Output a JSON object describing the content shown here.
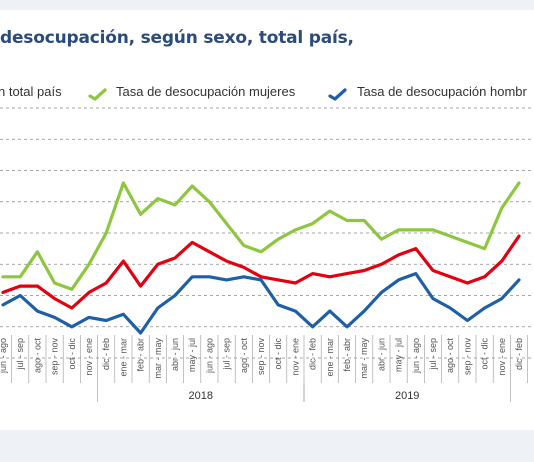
{
  "title": "desocupación, según sexo, total país,",
  "legend": [
    {
      "label": "n total país",
      "color": "#e3000f"
    },
    {
      "label": "Tasa de desocupación mujeres",
      "color": "#8dc63f"
    },
    {
      "label": "Tasa de desocupación hombr",
      "color": "#1f5fa6"
    }
  ],
  "chart_data": {
    "type": "line",
    "categories": [
      "jun - ago",
      "jul - sep",
      "ago - oct",
      "sep - nov",
      "oct - dic",
      "nov - ene",
      "dic - feb",
      "ene - mar",
      "feb - abr",
      "mar - may",
      "abr - jun",
      "may - jul",
      "jun - ago",
      "jul - sep",
      "ago - oct",
      "sep - nov",
      "oct - dic",
      "nov - ene",
      "dic - feb",
      "ene - mar",
      "feb - abr",
      "mar - may",
      "abr - jun",
      "may - jul",
      "jun - ago",
      "jul - sep",
      "ago - oct",
      "sep - nov",
      "oct - dic",
      "nov - ene",
      "dic - feb"
    ],
    "years": [
      {
        "label": "2018",
        "from": 6,
        "to": 17
      },
      {
        "label": "2019",
        "from": 18,
        "to": 29
      }
    ],
    "series": [
      {
        "name": "n total país",
        "color": "#e3000f",
        "values": [
          8.1,
          8.3,
          8.3,
          7.9,
          7.6,
          8.1,
          8.4,
          9.1,
          8.3,
          9.0,
          9.2,
          9.7,
          9.4,
          9.1,
          8.9,
          8.6,
          8.5,
          8.4,
          8.7,
          8.6,
          8.7,
          8.8,
          9.0,
          9.3,
          9.5,
          8.8,
          8.6,
          8.4,
          8.6,
          9.1,
          9.9
        ]
      },
      {
        "name": "Tasa de desocupación mujeres",
        "color": "#8dc63f",
        "values": [
          8.6,
          8.6,
          9.4,
          8.4,
          8.2,
          9.0,
          10.0,
          11.6,
          10.6,
          11.1,
          10.9,
          11.5,
          11.0,
          10.3,
          9.6,
          9.4,
          9.8,
          10.1,
          10.3,
          10.7,
          10.4,
          10.4,
          9.8,
          10.1,
          10.1,
          10.1,
          9.9,
          9.7,
          9.5,
          10.8,
          11.6
        ]
      },
      {
        "name": "Tasa de desocupación hombr",
        "color": "#1f5fa6",
        "values": [
          7.7,
          8.0,
          7.5,
          7.3,
          7.0,
          7.3,
          7.2,
          7.4,
          6.8,
          7.6,
          8.0,
          8.6,
          8.6,
          8.5,
          8.6,
          8.5,
          7.7,
          7.5,
          7.0,
          7.5,
          7.0,
          7.5,
          8.1,
          8.5,
          8.7,
          7.9,
          7.6,
          7.2,
          7.6,
          7.9,
          8.5
        ]
      }
    ],
    "ylim": [
      6,
      14
    ],
    "grid": true
  }
}
